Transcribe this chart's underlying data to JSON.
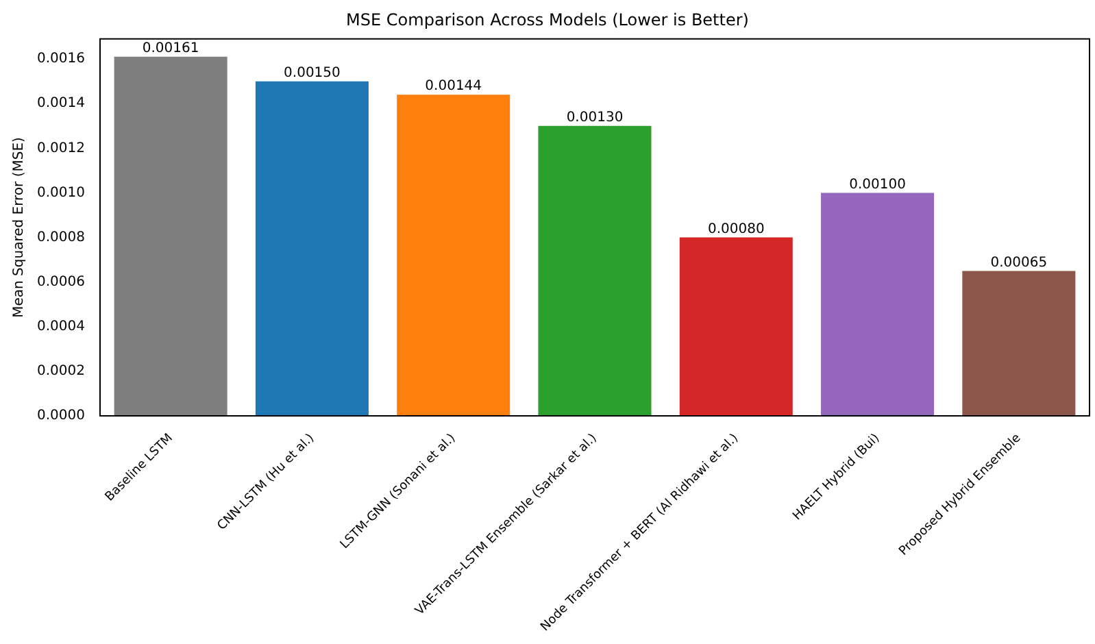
{
  "chart_data": {
    "type": "bar",
    "title": "MSE Comparison Across Models (Lower is Better)",
    "ylabel": "Mean Squared Error (MSE)",
    "categories": [
      "Baseline LSTM",
      "CNN-LSTM (Hu et al.)",
      "LSTM-GNN (Sonani et al.)",
      "VAE-Trans-LSTM Ensemble (Sarkar et al.)",
      "Node Transformer + BERT (Al Ridhawi et al.)",
      "HAELT Hybrid (Bui)",
      "Proposed Hybrid Ensemble"
    ],
    "values": [
      0.00161,
      0.0015,
      0.00144,
      0.0013,
      0.0008,
      0.001,
      0.00065
    ],
    "value_labels": [
      "0.00161",
      "0.00150",
      "0.00144",
      "0.00130",
      "0.00080",
      "0.00100",
      "0.00065"
    ],
    "colors": [
      "#7f7f7f",
      "#1f77b4",
      "#ff7f0e",
      "#2ca02c",
      "#d62728",
      "#9467bd",
      "#8c564b"
    ],
    "ylim": [
      0,
      0.00169
    ],
    "yticks": [
      {
        "value": 0,
        "label": "0.0000"
      },
      {
        "value": 0.0002,
        "label": "0.0002"
      },
      {
        "value": 0.0004,
        "label": "0.0004"
      },
      {
        "value": 0.0006,
        "label": "0.0006"
      },
      {
        "value": 0.0008,
        "label": "0.0008"
      },
      {
        "value": 0.001,
        "label": "0.0010"
      },
      {
        "value": 0.0012,
        "label": "0.0012"
      },
      {
        "value": 0.0014,
        "label": "0.0014"
      },
      {
        "value": 0.0016,
        "label": "0.0016"
      }
    ],
    "grid": false,
    "legend": false
  }
}
